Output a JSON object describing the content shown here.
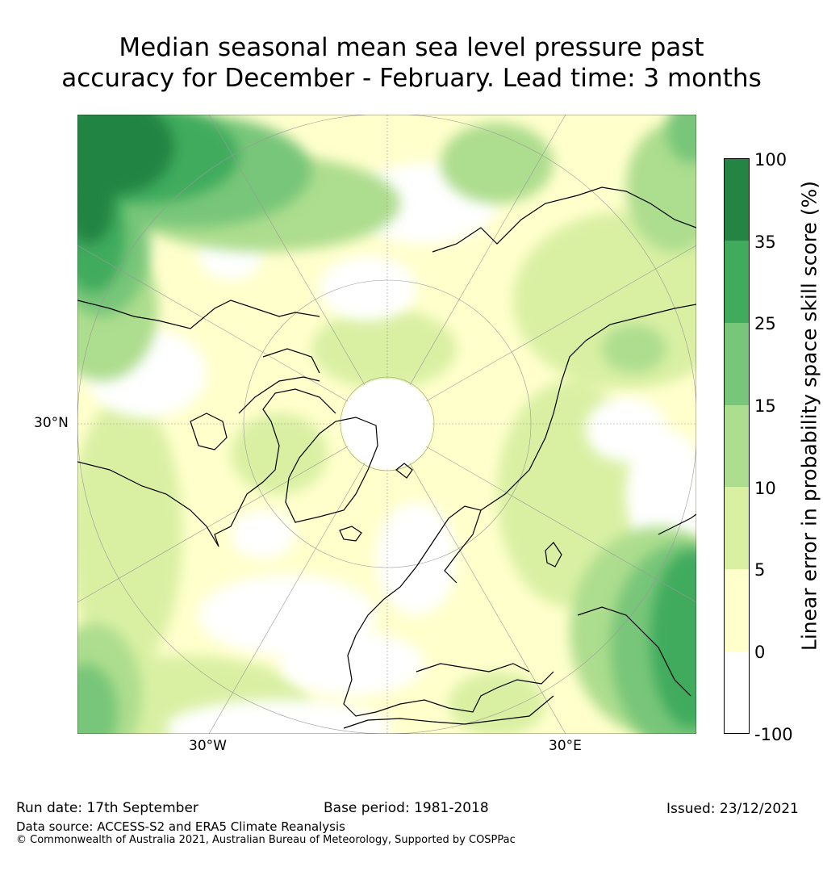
{
  "title_line1": "Median seasonal mean sea level pressure past",
  "title_line2": "accuracy for December - February. Lead time: 3 months",
  "map": {
    "projection": "north-polar-stereographic",
    "lat_label": "30°N",
    "lon_label_left": "30°W",
    "lon_label_right": "30°E"
  },
  "colorbar": {
    "label": "Linear error in probability space skill score (%)",
    "ticks": [
      "100",
      "35",
      "25",
      "15",
      "10",
      "5",
      "0",
      "-100"
    ],
    "bins": [
      {
        "range": "-100 to 0",
        "color": "#ffffff"
      },
      {
        "range": "0 to 5",
        "color": "#ffffcc"
      },
      {
        "range": "5 to 10",
        "color": "#d9f0a3"
      },
      {
        "range": "10 to 15",
        "color": "#addd8e"
      },
      {
        "range": "15 to 25",
        "color": "#78c679"
      },
      {
        "range": "25 to 35",
        "color": "#41ab5d"
      },
      {
        "range": "35 to 100",
        "color": "#238443"
      }
    ]
  },
  "footer": {
    "run_date": "Run date: 17th September",
    "base_period": "Base period: 1981-2018",
    "issued": "Issued: 23/12/2021",
    "data_source": "Data source: ACCESS-S2 and ERA5 Climate Reanalysis",
    "copyright": "© Commonwealth of Australia 2021, Australian Bureau of Meteorology, Supported by COSPPac"
  }
}
